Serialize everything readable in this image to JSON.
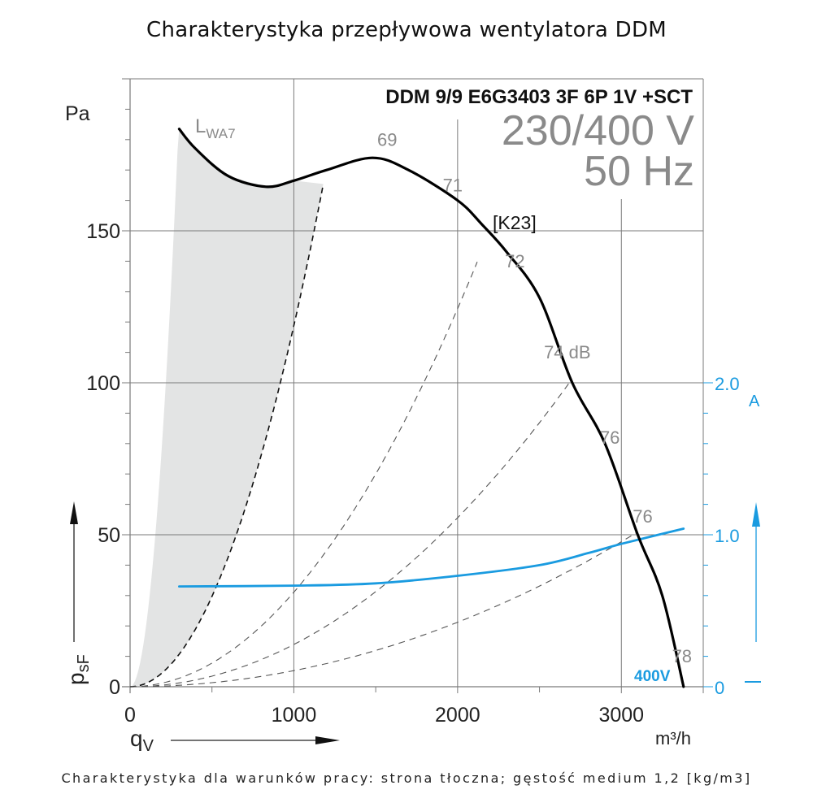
{
  "title": "Charakterystyka przepływowa wentylatora DDM",
  "footer": "Charakterystyka dla warunków pracy: strona tłoczna; gęstość medium 1,2 [kg/m3]",
  "chart_data": {
    "type": "line",
    "title": "Charakterystyka przepływowa wentylatora DDM",
    "model": "DDM 9/9 E6G3403 3F 6P 1V +SCT",
    "voltage": "230/400 V",
    "frequency": "50 Hz",
    "curve_code": "[K23]",
    "xlabel": "qV",
    "xunit": "m³/h",
    "ylabel": "psF",
    "yunit": "Pa",
    "y2unit": "A",
    "xlim": [
      0,
      3500
    ],
    "ylim": [
      0,
      200
    ],
    "y2lim": [
      0,
      2.0
    ],
    "x_ticks": [
      0,
      1000,
      2000,
      3000
    ],
    "x_tick_labels": [
      "0",
      "1000",
      "2000",
      "3000"
    ],
    "y_ticks": [
      0,
      50,
      100,
      150
    ],
    "y_tick_labels": [
      "0",
      "50",
      "100",
      "150"
    ],
    "y2_ticks": [
      0,
      1.0,
      2.0
    ],
    "y2_tick_labels": [
      "0",
      "1.0",
      "2.0"
    ],
    "grid": true,
    "colors": {
      "pressure": "#000000",
      "current": "#1a9be0",
      "system": "#555555",
      "shade": "#e3e4e4",
      "grid": "#7a7a7a",
      "db_text": "#8a8a8a"
    },
    "series": [
      {
        "name": "pressure psF (Pa)",
        "axis": "left",
        "x": [
          300,
          400,
          600,
          830,
          1000,
          1200,
          1480,
          1700,
          2000,
          2150,
          2300,
          2500,
          2700,
          2900,
          3100,
          3250,
          3380
        ],
        "y": [
          183.5,
          177,
          168,
          164.5,
          166.5,
          170,
          174,
          170,
          160,
          152,
          143,
          128,
          100,
          80,
          50,
          30,
          0
        ]
      },
      {
        "name": "current 400V (A)",
        "label": "400V",
        "axis": "right",
        "x": [
          300,
          1000,
          1500,
          2000,
          2500,
          2800,
          3000,
          3380
        ],
        "y": [
          0.66,
          0.665,
          0.68,
          0.73,
          0.8,
          0.88,
          0.94,
          1.04
        ]
      }
    ],
    "system_curves": [
      {
        "name": "LWA7 boundary",
        "k": 0.0001188,
        "x_end": 1180
      },
      {
        "name": "system-2",
        "k": 3.11e-05,
        "x_end": 2130
      },
      {
        "name": "system-3",
        "k": 1.39e-05,
        "x_end": 2680
      },
      {
        "name": "system-4",
        "k": 5.3e-06,
        "x_end": 3100
      }
    ],
    "shaded_region": {
      "name": "LWA7 zone",
      "left_k": 0.0021
    },
    "annotations": [
      {
        "text": "69",
        "x": 1570,
        "y": 178
      },
      {
        "text": "71",
        "x": 1970,
        "y": 163
      },
      {
        "text": "72",
        "x": 2350,
        "y": 138
      },
      {
        "text": "74 dB",
        "x": 2670,
        "y": 108
      },
      {
        "text": "76",
        "x": 2930,
        "y": 80
      },
      {
        "text": "76",
        "x": 3130,
        "y": 54
      },
      {
        "text": "78",
        "x": 3370,
        "y": 8
      }
    ]
  },
  "labels": {
    "y_unit": "Pa",
    "y_axis_name": "p",
    "y_axis_sub": "sF",
    "x_axis_name": "q",
    "x_axis_sub": "V",
    "x_unit": "m³/h",
    "y2_unit": "A",
    "lwa_main": "L",
    "lwa_sub": "WA7",
    "curve_code": "[K23]",
    "model": "DDM 9/9 E6G3403 3F 6P 1V +SCT",
    "voltage": "230/400 V",
    "frequency": "50 Hz",
    "current_label": "400V"
  }
}
